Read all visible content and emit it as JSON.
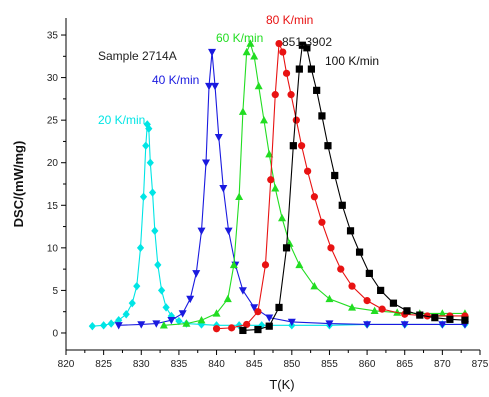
{
  "chart_data": {
    "type": "scatter",
    "title": "",
    "xlabel": "T(K)",
    "ylabel": "DSC/(mW/mg)",
    "xlim": [
      820,
      875
    ],
    "ylim": [
      -2,
      37
    ],
    "x_ticks": [
      820,
      825,
      830,
      835,
      840,
      845,
      850,
      855,
      860,
      865,
      870,
      875
    ],
    "y_ticks": [
      0,
      5,
      10,
      15,
      20,
      25,
      30,
      35
    ],
    "grid": false,
    "legend": "inline labels",
    "annotations": [
      "Sample 2714A",
      "851.3902"
    ],
    "series": [
      {
        "name": "20 K/min",
        "color": "#00e5e5",
        "marker": "diamond",
        "x": [
          823.5,
          825,
          826,
          827,
          828,
          828.8,
          829.4,
          829.9,
          830.3,
          830.6,
          830.8,
          831.0,
          831.2,
          831.5,
          831.8,
          832.2,
          832.7,
          833.3,
          834,
          835,
          836,
          838,
          840,
          843,
          846,
          850,
          855,
          860,
          865,
          870,
          873
        ],
        "y": [
          0.8,
          0.9,
          1.1,
          1.5,
          2.2,
          3.5,
          5.5,
          10,
          16,
          22,
          24.5,
          24,
          20,
          16.5,
          12,
          8,
          5,
          3,
          2,
          1.4,
          1.1,
          1.0,
          0.9,
          0.9,
          0.9,
          0.9,
          0.9,
          1.0,
          1.0,
          1.0,
          1.0
        ]
      },
      {
        "name": "40 K/min",
        "color": "#1a1adf",
        "marker": "triangle-down",
        "x": [
          827,
          830,
          832,
          834,
          835.5,
          836.5,
          837.3,
          838,
          838.6,
          839,
          839.4,
          839.8,
          840.3,
          840.9,
          841.6,
          842.5,
          843.5,
          845,
          847,
          850,
          855,
          860,
          865,
          870,
          873
        ],
        "y": [
          0.9,
          1.0,
          1.1,
          1.5,
          2.3,
          4,
          7,
          12,
          20,
          29,
          33,
          29,
          23,
          17,
          12,
          8,
          5,
          3,
          1.8,
          1.3,
          1.1,
          1.0,
          1.0,
          1.0,
          1.0
        ]
      },
      {
        "name": "60 K/min",
        "color": "#22dd22",
        "marker": "triangle-up",
        "x": [
          833,
          836,
          838,
          840,
          841.5,
          842.3,
          843,
          843.5,
          844,
          844.5,
          845,
          845.6,
          846.3,
          847,
          847.8,
          848.7,
          849.7,
          851,
          853,
          855,
          858,
          861,
          864,
          867,
          870,
          873
        ],
        "y": [
          0.9,
          1.1,
          1.5,
          2.3,
          4,
          8,
          16,
          26,
          33,
          34,
          32.5,
          29,
          25,
          21,
          17,
          13.5,
          10.5,
          8,
          5.5,
          4,
          3,
          2.6,
          2.4,
          2.3,
          2.3,
          2.3
        ]
      },
      {
        "name": "80 K/min",
        "color": "#e81212",
        "marker": "circle",
        "x": [
          840,
          842,
          844,
          845.5,
          846.5,
          847.2,
          847.8,
          848.3,
          848.8,
          849.3,
          849.9,
          850.6,
          851.3,
          852.1,
          853,
          854,
          855.2,
          856.5,
          858,
          860,
          862,
          865,
          868,
          871,
          873
        ],
        "y": [
          0.5,
          0.6,
          1.0,
          2.5,
          8,
          18,
          28,
          34,
          33,
          30.5,
          28,
          25,
          22,
          19,
          16,
          13,
          10,
          7.5,
          5.5,
          3.8,
          2.8,
          2.2,
          2.0,
          2.0,
          2.0
        ]
      },
      {
        "name": "100 K/min",
        "color": "#000000",
        "marker": "square",
        "x": [
          843.5,
          845.5,
          847,
          848.3,
          849.3,
          850.2,
          851,
          851.4,
          852,
          852.6,
          853.3,
          854,
          854.8,
          855.7,
          856.7,
          857.8,
          859,
          860.3,
          861.8,
          863.5,
          865.3,
          867,
          869,
          871,
          873
        ],
        "y": [
          0.3,
          0.4,
          0.8,
          3,
          10,
          22,
          31,
          33.8,
          33.5,
          31,
          28.5,
          25.5,
          22,
          18.5,
          15,
          12,
          9.5,
          7,
          5,
          3.5,
          2.6,
          2.1,
          1.8,
          1.6,
          1.5
        ]
      }
    ]
  }
}
